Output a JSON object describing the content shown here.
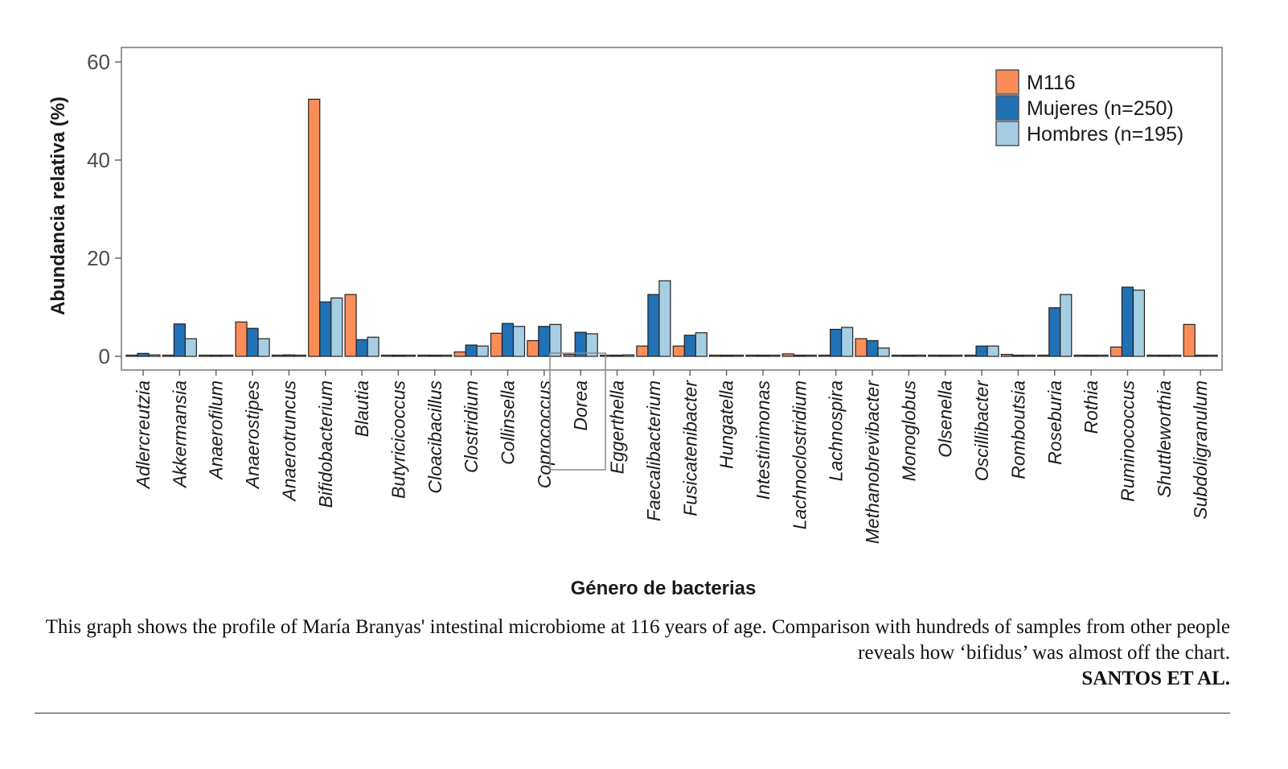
{
  "chart_data": {
    "type": "bar",
    "title": "",
    "xlabel": "Género de bacterias",
    "ylabel": "Abundancia relativa (%)",
    "ylim": [
      0,
      62
    ],
    "yticks": [
      0,
      20,
      40,
      60
    ],
    "grid": false,
    "legend_position": "top-right",
    "categories": [
      "Adlercreutzia",
      "Akkermansia",
      "Anaerofilum",
      "Anaerostipes",
      "Anaerotruncus",
      "Bifidobacterium",
      "Blautia",
      "Butyricicoccus",
      "Cloacibacillus",
      "Clostridium",
      "Collinsella",
      "Coprococcus",
      "Dorea",
      "Eggerthella",
      "Faecalibacterium",
      "Fusicatenibacter",
      "Hungatella",
      "Intestinimonas",
      "Lachnoclostridium",
      "Lachnospira",
      "Methanobrevibacter",
      "Monoglobus",
      "Olsenella",
      "Oscillibacter",
      "Romboutsia",
      "Roseburia",
      "Rothia",
      "Ruminococcus",
      "Shuttleworthia",
      "Subdoligranulum"
    ],
    "series": [
      {
        "name": "M116",
        "color": "#fc8d59",
        "values": [
          0.1,
          0.1,
          0,
          7.0,
          0,
          52.4,
          12.6,
          0.1,
          0.1,
          0.9,
          4.7,
          3.2,
          0.4,
          0.1,
          2.1,
          2.1,
          0,
          0,
          0.5,
          0.1,
          3.6,
          0.1,
          0.1,
          0,
          0.4,
          0.1,
          0,
          1.9,
          0,
          6.5
        ]
      },
      {
        "name": "Mujeres (n=250)",
        "color": "#2171b5",
        "values": [
          0.6,
          6.6,
          0,
          5.7,
          0.3,
          11.1,
          3.4,
          0.1,
          0,
          2.3,
          6.7,
          6.1,
          4.9,
          0.1,
          12.6,
          4.3,
          0.1,
          0.1,
          0.1,
          5.5,
          3.2,
          0.1,
          0,
          2.1,
          0.1,
          9.9,
          0,
          14.1,
          0,
          0
        ]
      },
      {
        "name": "Hombres (n=195)",
        "color": "#a6cee3",
        "values": [
          0.3,
          3.6,
          0,
          3.6,
          0.1,
          11.9,
          3.9,
          0.1,
          0,
          2.1,
          6.1,
          6.5,
          4.6,
          0.3,
          15.4,
          4.8,
          0.1,
          0.1,
          0.1,
          5.9,
          1.7,
          0.1,
          0,
          2.1,
          0,
          12.6,
          0.1,
          13.5,
          0,
          0
        ]
      }
    ],
    "highlighted_category": "Dorea"
  },
  "caption": {
    "text": "This graph shows the profile of María Branyas' intestinal microbiome at 116 years of age. Comparison with hundreds of samples from other people reveals how ‘bifidus’ was almost off the chart.",
    "credit": "SANTOS ET AL."
  }
}
